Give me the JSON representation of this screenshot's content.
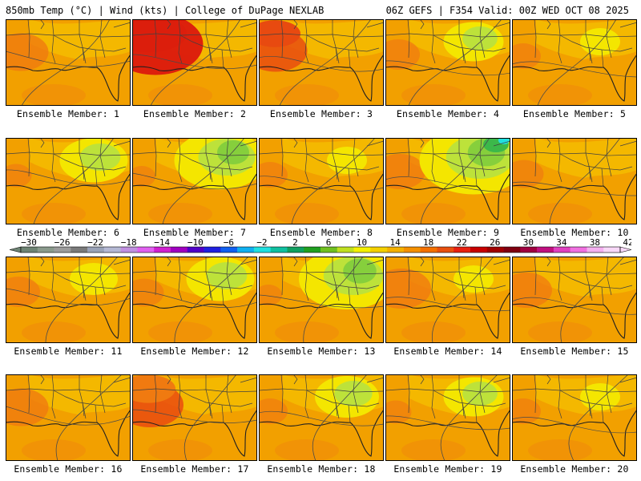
{
  "header": {
    "left": "850mb Temp (°C) | Wind (kts) | College of DuPage NEXLAB",
    "right": "06Z GEFS | F354 Valid: 00Z WED OCT 08 2025"
  },
  "member_label_prefix": "Ensemble Member: ",
  "members": [
    {
      "number": "1",
      "label": "Ensemble Member: 1",
      "warm": 0.45,
      "cool": 0.0
    },
    {
      "number": "2",
      "label": "Ensemble Member: 2",
      "warm": 0.95,
      "cool": 0.0
    },
    {
      "number": "3",
      "label": "Ensemble Member: 3",
      "warm": 0.55,
      "cool": 0.05
    },
    {
      "number": "4",
      "label": "Ensemble Member: 4",
      "warm": 0.3,
      "cool": 0.35
    },
    {
      "number": "5",
      "label": "Ensemble Member: 5",
      "warm": 0.2,
      "cool": 0.1
    },
    {
      "number": "6",
      "label": "Ensemble Member: 6",
      "warm": 0.15,
      "cool": 0.45
    },
    {
      "number": "7",
      "label": "Ensemble Member: 7",
      "warm": 0.1,
      "cool": 0.75
    },
    {
      "number": "8",
      "label": "Ensemble Member: 8",
      "warm": 0.2,
      "cool": 0.1
    },
    {
      "number": "9",
      "label": "Ensemble Member: 9",
      "warm": 0.4,
      "cool": 0.95
    },
    {
      "number": "10",
      "label": "Ensemble Member: 10",
      "warm": 0.25,
      "cool": 0.05
    },
    {
      "number": "11",
      "label": "Ensemble Member: 11",
      "warm": 0.3,
      "cool": 0.2
    },
    {
      "number": "12",
      "label": "Ensemble Member: 12",
      "warm": 0.25,
      "cool": 0.45
    },
    {
      "number": "13",
      "label": "Ensemble Member: 13",
      "warm": 0.1,
      "cool": 0.8
    },
    {
      "number": "14",
      "label": "Ensemble Member: 14",
      "warm": 0.5,
      "cool": 0.1
    },
    {
      "number": "15",
      "label": "Ensemble Member: 15",
      "warm": 0.4,
      "cool": 0.05
    },
    {
      "number": "16",
      "label": "Ensemble Member: 16",
      "warm": 0.45,
      "cool": 0.0
    },
    {
      "number": "17",
      "label": "Ensemble Member: 17",
      "warm": 0.6,
      "cool": 0.05
    },
    {
      "number": "18",
      "label": "Ensemble Member: 18",
      "warm": 0.2,
      "cool": 0.4
    },
    {
      "number": "19",
      "label": "Ensemble Member: 19",
      "warm": 0.15,
      "cool": 0.35
    },
    {
      "number": "20",
      "label": "Ensemble Member: 20",
      "warm": 0.2,
      "cool": 0.1
    }
  ],
  "colorbar": {
    "tick_labels": [
      "−30",
      "−26",
      "−22",
      "−18",
      "−14",
      "−10",
      "−6",
      "−2",
      "2",
      "6",
      "10",
      "14",
      "18",
      "22",
      "26",
      "30",
      "34",
      "38",
      "42"
    ],
    "colors": [
      "#6e8474",
      "#8a9a8c",
      "#9c9c9c",
      "#7a7a7a",
      "#9aa3b8",
      "#b4b8d4",
      "#c090e0",
      "#e060f0",
      "#d020d0",
      "#a000c0",
      "#5000c8",
      "#2020e0",
      "#1060f0",
      "#10b0f0",
      "#20e0e0",
      "#10c0a0",
      "#10a060",
      "#20a020",
      "#70c020",
      "#c0e020",
      "#f4f000",
      "#f4d000",
      "#f4b000",
      "#f49000",
      "#f47000",
      "#e85010",
      "#e82010",
      "#c80000",
      "#a00000",
      "#800010",
      "#a00040",
      "#c01080",
      "#e040c0",
      "#f070e0",
      "#f4b0f0",
      "#f8d8f8"
    ]
  },
  "field_colors": {
    "orange": "#f2a000",
    "light_orange": "#f4b800",
    "yellow": "#f4e600",
    "lime": "#bde23a",
    "green": "#86cf3c",
    "dark_green": "#3cb84a",
    "cyan": "#20e0e0",
    "dark_orange": "#f07a10",
    "red_orange": "#e84a10",
    "red": "#dc1e0c"
  }
}
